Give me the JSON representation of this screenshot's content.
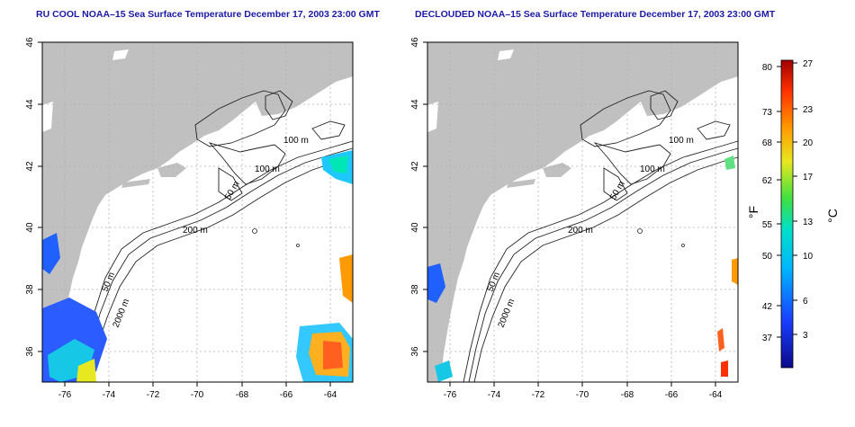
{
  "left_panel": {
    "title": "RU COOL NOAA–15 Sea Surface Temperature December 17, 2003 23:00 GMT"
  },
  "right_panel": {
    "title": "DECLOUDED NOAA–15 Sea Surface Temperature December 17, 2003 23:00 GMT"
  },
  "axes": {
    "lat_ticks": [
      "36",
      "38",
      "40",
      "42",
      "44",
      "46"
    ],
    "lon_ticks": [
      "-76",
      "-74",
      "-72",
      "-70",
      "-68",
      "-66",
      "-64"
    ],
    "lat_range": [
      35,
      46
    ],
    "lon_range": [
      -77,
      -63
    ]
  },
  "contours": {
    "labels": [
      "100 m",
      "100 m",
      "50 m",
      "200 m",
      "50 m",
      "2000 m"
    ]
  },
  "colorbar": {
    "fahrenheit_label": "°F",
    "celsius_label": "°C",
    "fahrenheit_ticks": [
      "80",
      "73",
      "68",
      "62",
      "55",
      "50",
      "42",
      "37"
    ],
    "celsius_ticks": [
      "27",
      "23",
      "20",
      "17",
      "13",
      "10",
      "6",
      "3"
    ]
  },
  "colors": {
    "land": "#c0c0c0",
    "title": "#1a1aa6",
    "grid": "#b0b0b0",
    "contour": "#222222"
  }
}
